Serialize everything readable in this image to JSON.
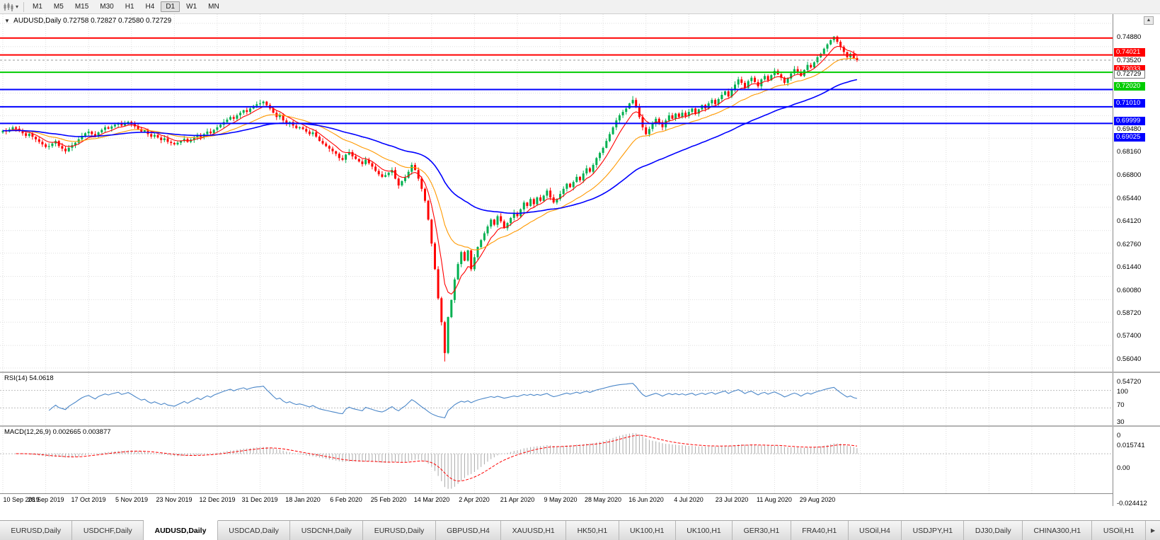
{
  "toolbar": {
    "timeframes": [
      {
        "label": "M1"
      },
      {
        "label": "M5"
      },
      {
        "label": "M15"
      },
      {
        "label": "M30"
      },
      {
        "label": "H1"
      },
      {
        "label": "H4"
      },
      {
        "label": "D1",
        "active": true
      },
      {
        "label": "W1"
      },
      {
        "label": "MN"
      }
    ]
  },
  "chart_header": {
    "symbol": "AUDUSD,Daily",
    "open": "0.72758",
    "high": "0.72827",
    "low": "0.72580",
    "close": "0.72729"
  },
  "chart_data": {
    "type": "candlestick",
    "title": "AUDUSD Daily",
    "ylim": [
      0.5472,
      0.7488
    ],
    "first_open": 0.685,
    "x_labels": [
      "10 Sep 2019",
      "28 Sep 2019",
      "17 Oct 2019",
      "5 Nov 2019",
      "23 Nov 2019",
      "12 Dec 2019",
      "31 Dec 2019",
      "18 Jan 2020",
      "6 Feb 2020",
      "25 Feb 2020",
      "14 Mar 2020",
      "2 Apr 2020",
      "21 Apr 2020",
      "9 May 2020",
      "28 May 2020",
      "16 Jun 2020",
      "4 Jul 2020",
      "23 Jul 2020",
      "11 Aug 2020",
      "29 Aug 2020"
    ],
    "x_label_step": 13,
    "closes": [
      0.686,
      0.6855,
      0.6868,
      0.688,
      0.6872,
      0.6858,
      0.6845,
      0.683,
      0.6842,
      0.6825,
      0.681,
      0.6795,
      0.678,
      0.6765,
      0.677,
      0.6785,
      0.68,
      0.677,
      0.6755,
      0.674,
      0.676,
      0.6775,
      0.679,
      0.681,
      0.683,
      0.6845,
      0.6855,
      0.684,
      0.6825,
      0.685,
      0.6865,
      0.688,
      0.6872,
      0.6885,
      0.6895,
      0.6905,
      0.689,
      0.69,
      0.6912,
      0.69,
      0.6885,
      0.687,
      0.6855,
      0.6862,
      0.684,
      0.6825,
      0.6835,
      0.682,
      0.6805,
      0.6815,
      0.6795,
      0.6788,
      0.678,
      0.679,
      0.68,
      0.6812,
      0.6795,
      0.6808,
      0.682,
      0.6835,
      0.6822,
      0.684,
      0.6855,
      0.6845,
      0.6865,
      0.688,
      0.6895,
      0.691,
      0.6925,
      0.694,
      0.693,
      0.695,
      0.6965,
      0.698,
      0.697,
      0.699,
      0.7005,
      0.7015,
      0.702,
      0.703,
      0.701,
      0.699,
      0.6965,
      0.694,
      0.695,
      0.692,
      0.69,
      0.691,
      0.689,
      0.6875,
      0.688,
      0.687,
      0.6855,
      0.684,
      0.685,
      0.6825,
      0.68,
      0.6785,
      0.677,
      0.6755,
      0.674,
      0.6725,
      0.67,
      0.669,
      0.672,
      0.6735,
      0.671,
      0.6695,
      0.668,
      0.6665,
      0.669,
      0.667,
      0.665,
      0.6625,
      0.6605,
      0.659,
      0.66,
      0.6615,
      0.663,
      0.658,
      0.654,
      0.6565,
      0.6585,
      0.662,
      0.666,
      0.663,
      0.658,
      0.652,
      0.645,
      0.634,
      0.62,
      0.605,
      0.588,
      0.574,
      0.556,
      0.577,
      0.587,
      0.599,
      0.608,
      0.615,
      0.61,
      0.616,
      0.605,
      0.612,
      0.618,
      0.622,
      0.626,
      0.63,
      0.634,
      0.631,
      0.636,
      0.633,
      0.629,
      0.632,
      0.635,
      0.638,
      0.636,
      0.64,
      0.644,
      0.642,
      0.646,
      0.643,
      0.647,
      0.645,
      0.648,
      0.651,
      0.647,
      0.644,
      0.646,
      0.649,
      0.652,
      0.655,
      0.653,
      0.656,
      0.659,
      0.657,
      0.661,
      0.664,
      0.662,
      0.666,
      0.67,
      0.673,
      0.676,
      0.68,
      0.684,
      0.688,
      0.692,
      0.695,
      0.697,
      0.699,
      0.702,
      0.704,
      0.7,
      0.694,
      0.688,
      0.684,
      0.687,
      0.69,
      0.693,
      0.691,
      0.688,
      0.692,
      0.695,
      0.693,
      0.696,
      0.694,
      0.6965,
      0.6945,
      0.697,
      0.699,
      0.696,
      0.6985,
      0.701,
      0.699,
      0.702,
      0.704,
      0.7015,
      0.7045,
      0.707,
      0.709,
      0.706,
      0.71,
      0.713,
      0.716,
      0.714,
      0.711,
      0.715,
      0.717,
      0.7145,
      0.712,
      0.716,
      0.718,
      0.7155,
      0.7185,
      0.721,
      0.719,
      0.717,
      0.714,
      0.7165,
      0.7195,
      0.722,
      0.7205,
      0.718,
      0.7215,
      0.7245,
      0.723,
      0.726,
      0.729,
      0.731,
      0.734,
      0.7365,
      0.739,
      0.741,
      0.738,
      0.735,
      0.732,
      0.729,
      0.731,
      0.7285,
      0.7273
    ],
    "wick_overrides": {
      "78": {
        "high": 0.7041
      },
      "134": {
        "low": 0.551
      },
      "191": {
        "high": 0.7063
      },
      "252": {
        "high": 0.7414
      }
    },
    "moving_averages": [
      {
        "name": "fast-ma",
        "period": 7,
        "color": "#FF0000"
      },
      {
        "name": "mid-ma",
        "period": 21,
        "color": "#FF9900"
      },
      {
        "name": "slow-ma",
        "period": 55,
        "color": "#0000FF"
      }
    ],
    "hlines": [
      {
        "value": 0.74021,
        "label": "0.74021",
        "color": "#FF0000"
      },
      {
        "value": 0.73033,
        "label": "0.73033",
        "color": "#FF0000"
      },
      {
        "value": 0.7202,
        "label": "0.72020",
        "color": "#00CC00"
      },
      {
        "value": 0.7101,
        "label": "0.71010",
        "color": "#0000FF"
      },
      {
        "value": 0.69999,
        "label": "0.69999",
        "color": "#0000FF"
      },
      {
        "value": 0.69025,
        "label": "0.69025",
        "color": "#0000FF"
      }
    ],
    "bid": {
      "value": 0.72729,
      "label": "0.72729",
      "line_color": "#999999"
    },
    "axis_labels": [
      "0.74880",
      "0.73520",
      "0.69480",
      "0.68160",
      "0.66800",
      "0.65440",
      "0.64120",
      "0.62760",
      "0.61440",
      "0.60080",
      "0.58720",
      "0.57400",
      "0.56040",
      "0.54720"
    ],
    "grid_extra": [
      0.7216,
      0.708
    ],
    "colors": {
      "up": "#00B050",
      "down": "#FF0000",
      "grid": "#dedede"
    },
    "indicators": {
      "rsi": {
        "label": "RSI(14) 54.0618",
        "period": 14,
        "levels": [
          100,
          70,
          30,
          0
        ],
        "color": "#4a86c8"
      },
      "macd": {
        "label": "MACD(12,26,9) 0.002665 0.003877",
        "fast": 12,
        "slow": 26,
        "signal": 9,
        "scale_max": 0.015741,
        "scale_min": -0.024412,
        "axis_labels": [
          "0.015741",
          "0.00",
          "-0.024412"
        ],
        "hist_color": "#aaaaaa",
        "signal_color": "#FF0000"
      }
    }
  },
  "tabs": [
    {
      "label": "EURUSD,Daily"
    },
    {
      "label": "USDCHF,Daily"
    },
    {
      "label": "AUDUSD,Daily",
      "active": true
    },
    {
      "label": "USDCAD,Daily"
    },
    {
      "label": "USDCNH,Daily"
    },
    {
      "label": "EURUSD,Daily"
    },
    {
      "label": "GBPUSD,H4"
    },
    {
      "label": "XAUUSD,H1"
    },
    {
      "label": "HK50,H1"
    },
    {
      "label": "UK100,H1"
    },
    {
      "label": "UK100,H1"
    },
    {
      "label": "GER30,H1"
    },
    {
      "label": "FRA40,H1"
    },
    {
      "label": "USOil,H4"
    },
    {
      "label": "USDJPY,H1"
    },
    {
      "label": "DJ30,Daily"
    },
    {
      "label": "CHINA300,H1"
    },
    {
      "label": "USOil,H1"
    }
  ],
  "tab_scroll_right": "▶",
  "mini_up_arrow": "▲",
  "header_collapse_icon": "▼",
  "toolbar_caret": "▾"
}
